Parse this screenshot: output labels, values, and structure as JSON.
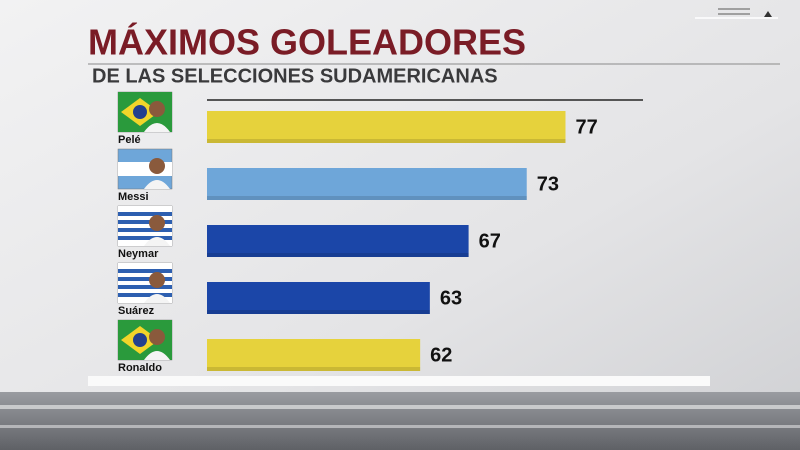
{
  "chart_data": {
    "type": "bar",
    "orientation": "horizontal",
    "title": "MÁXIMOS GOLEADORES",
    "subtitle": "DE LAS SELECCIONES SUDAMERICANAS",
    "categories": [
      "Pelé",
      "Messi",
      "Neymar",
      "Suárez",
      "Ronaldo"
    ],
    "values": [
      77,
      73,
      67,
      63,
      62
    ],
    "colors": [
      "#e6d23c",
      "#6ea6d9",
      "#1b46a8",
      "#1b46a8",
      "#e6d23c"
    ],
    "xlim": [
      40,
      85
    ]
  }
}
